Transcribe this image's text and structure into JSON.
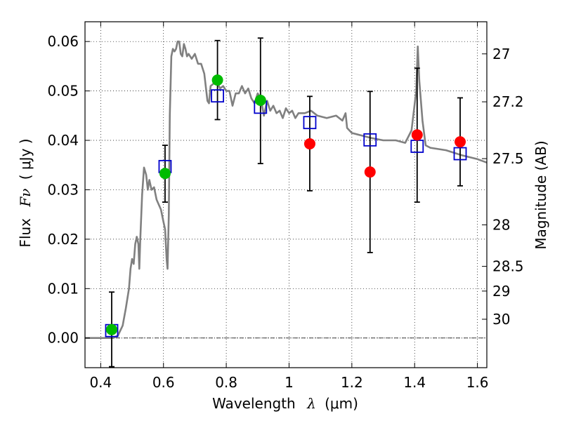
{
  "chart_data": {
    "type": "scatter",
    "xlabel": "Wavelength",
    "xlabel_symbol": "λ",
    "xlabel_unit": "(μm)",
    "ylabel": "Flux",
    "ylabel_symbol": "Fν",
    "ylabel_unit": "( μJy )",
    "y2label": "Magnitude (AB)",
    "xlim": [
      0.35,
      1.63
    ],
    "ylim": [
      -0.006,
      0.064
    ],
    "grid": true,
    "grid_style": "dotted",
    "x_ticks": [
      0.4,
      0.6,
      0.8,
      1.0,
      1.2,
      1.4,
      1.6
    ],
    "x_tick_labels": [
      "0.4",
      "0.6",
      "0.8",
      "1",
      "1.2",
      "1.4",
      "1.6"
    ],
    "y_ticks": [
      0.0,
      0.01,
      0.02,
      0.03,
      0.04,
      0.05,
      0.06
    ],
    "y_tick_labels": [
      "0.00",
      "0.01",
      "0.02",
      "0.03",
      "0.04",
      "0.05",
      "0.06"
    ],
    "y2_ticks": [
      {
        "flux": 0.0575,
        "label": "27"
      },
      {
        "flux": 0.0478,
        "label": "27.2"
      },
      {
        "flux": 0.0363,
        "label": "27.5"
      },
      {
        "flux": 0.0229,
        "label": "28"
      },
      {
        "flux": 0.0145,
        "label": "28.5"
      },
      {
        "flux": 0.0095,
        "label": "29"
      },
      {
        "flux": 0.0038,
        "label": "30"
      }
    ],
    "colors": {
      "model": "#808080",
      "green": "#00bb00",
      "red": "#ff0000",
      "square": "#0000cc",
      "errorbar": "#000000",
      "zero_line": "#000000"
    },
    "series": [
      {
        "marker": "line",
        "color": "#808080",
        "points": [
          [
            0.35,
            0.0
          ],
          [
            0.44,
            0.0
          ],
          [
            0.455,
            0.0005
          ],
          [
            0.47,
            0.0025
          ],
          [
            0.48,
            0.006
          ],
          [
            0.49,
            0.01
          ],
          [
            0.495,
            0.014
          ],
          [
            0.5,
            0.016
          ],
          [
            0.505,
            0.015
          ],
          [
            0.51,
            0.019
          ],
          [
            0.515,
            0.0205
          ],
          [
            0.52,
            0.019
          ],
          [
            0.523,
            0.014
          ],
          [
            0.526,
            0.02
          ],
          [
            0.532,
            0.029
          ],
          [
            0.538,
            0.0345
          ],
          [
            0.545,
            0.033
          ],
          [
            0.55,
            0.03
          ],
          [
            0.555,
            0.032
          ],
          [
            0.562,
            0.03
          ],
          [
            0.57,
            0.0305
          ],
          [
            0.578,
            0.028
          ],
          [
            0.585,
            0.027
          ],
          [
            0.592,
            0.026
          ],
          [
            0.6,
            0.0235
          ],
          [
            0.605,
            0.022
          ],
          [
            0.61,
            0.016
          ],
          [
            0.613,
            0.014
          ],
          [
            0.617,
            0.025
          ],
          [
            0.62,
            0.045
          ],
          [
            0.625,
            0.057
          ],
          [
            0.63,
            0.0585
          ],
          [
            0.635,
            0.058
          ],
          [
            0.64,
            0.0585
          ],
          [
            0.645,
            0.06
          ],
          [
            0.65,
            0.06
          ],
          [
            0.655,
            0.0575
          ],
          [
            0.66,
            0.057
          ],
          [
            0.665,
            0.0595
          ],
          [
            0.67,
            0.0585
          ],
          [
            0.675,
            0.057
          ],
          [
            0.68,
            0.0575
          ],
          [
            0.69,
            0.0565
          ],
          [
            0.7,
            0.0575
          ],
          [
            0.71,
            0.0555
          ],
          [
            0.72,
            0.0555
          ],
          [
            0.73,
            0.0535
          ],
          [
            0.74,
            0.048
          ],
          [
            0.745,
            0.0475
          ],
          [
            0.75,
            0.051
          ],
          [
            0.76,
            0.0515
          ],
          [
            0.77,
            0.052
          ],
          [
            0.78,
            0.0505
          ],
          [
            0.79,
            0.051
          ],
          [
            0.8,
            0.05
          ],
          [
            0.81,
            0.05
          ],
          [
            0.82,
            0.047
          ],
          [
            0.83,
            0.0495
          ],
          [
            0.84,
            0.0495
          ],
          [
            0.85,
            0.051
          ],
          [
            0.86,
            0.0495
          ],
          [
            0.87,
            0.0505
          ],
          [
            0.88,
            0.0485
          ],
          [
            0.89,
            0.0475
          ],
          [
            0.9,
            0.0495
          ],
          [
            0.91,
            0.0485
          ],
          [
            0.92,
            0.045
          ],
          [
            0.93,
            0.048
          ],
          [
            0.94,
            0.046
          ],
          [
            0.95,
            0.047
          ],
          [
            0.96,
            0.0455
          ],
          [
            0.97,
            0.046
          ],
          [
            0.98,
            0.0445
          ],
          [
            0.99,
            0.0465
          ],
          [
            1.0,
            0.0455
          ],
          [
            1.01,
            0.046
          ],
          [
            1.02,
            0.0445
          ],
          [
            1.03,
            0.0455
          ],
          [
            1.05,
            0.0455
          ],
          [
            1.07,
            0.046
          ],
          [
            1.09,
            0.045
          ],
          [
            1.12,
            0.0445
          ],
          [
            1.15,
            0.045
          ],
          [
            1.17,
            0.044
          ],
          [
            1.18,
            0.0455
          ],
          [
            1.185,
            0.0425
          ],
          [
            1.2,
            0.0415
          ],
          [
            1.23,
            0.041
          ],
          [
            1.26,
            0.0405
          ],
          [
            1.3,
            0.04
          ],
          [
            1.34,
            0.04
          ],
          [
            1.37,
            0.0395
          ],
          [
            1.39,
            0.042
          ],
          [
            1.405,
            0.05
          ],
          [
            1.41,
            0.059
          ],
          [
            1.415,
            0.052
          ],
          [
            1.425,
            0.044
          ],
          [
            1.435,
            0.039
          ],
          [
            1.45,
            0.0385
          ],
          [
            1.5,
            0.038
          ],
          [
            1.55,
            0.037
          ],
          [
            1.6,
            0.0362
          ],
          [
            1.63,
            0.0355
          ]
        ]
      },
      {
        "marker": "circle",
        "color": "#00bb00",
        "points": [
          [
            0.435,
            0.0017
          ],
          [
            0.605,
            0.0333
          ],
          [
            0.772,
            0.0522
          ],
          [
            0.909,
            0.0481
          ]
        ]
      },
      {
        "marker": "circle",
        "color": "#ff0000",
        "points": [
          [
            1.066,
            0.0393
          ],
          [
            1.258,
            0.0336
          ],
          [
            1.408,
            0.0411
          ],
          [
            1.545,
            0.0397
          ]
        ]
      },
      {
        "marker": "square",
        "color": "#0000cc",
        "points": [
          [
            0.435,
            0.0015
          ],
          [
            0.605,
            0.0347
          ],
          [
            0.772,
            0.049
          ],
          [
            0.909,
            0.0467
          ],
          [
            1.066,
            0.0436
          ],
          [
            1.258,
            0.0401
          ],
          [
            1.408,
            0.0388
          ],
          [
            1.545,
            0.0373
          ]
        ]
      },
      {
        "marker": "errorbar",
        "color": "#000000",
        "points": [
          {
            "x": 0.435,
            "low": -0.0058,
            "high": 0.0093
          },
          {
            "x": 0.605,
            "low": 0.0275,
            "high": 0.039
          },
          {
            "x": 0.772,
            "low": 0.0442,
            "high": 0.0602
          },
          {
            "x": 0.909,
            "low": 0.0353,
            "high": 0.0607
          },
          {
            "x": 1.066,
            "low": 0.0298,
            "high": 0.0489
          },
          {
            "x": 1.258,
            "low": 0.0173,
            "high": 0.0499
          },
          {
            "x": 1.408,
            "low": 0.0275,
            "high": 0.0546
          },
          {
            "x": 1.545,
            "low": 0.0308,
            "high": 0.0486
          }
        ]
      }
    ]
  }
}
